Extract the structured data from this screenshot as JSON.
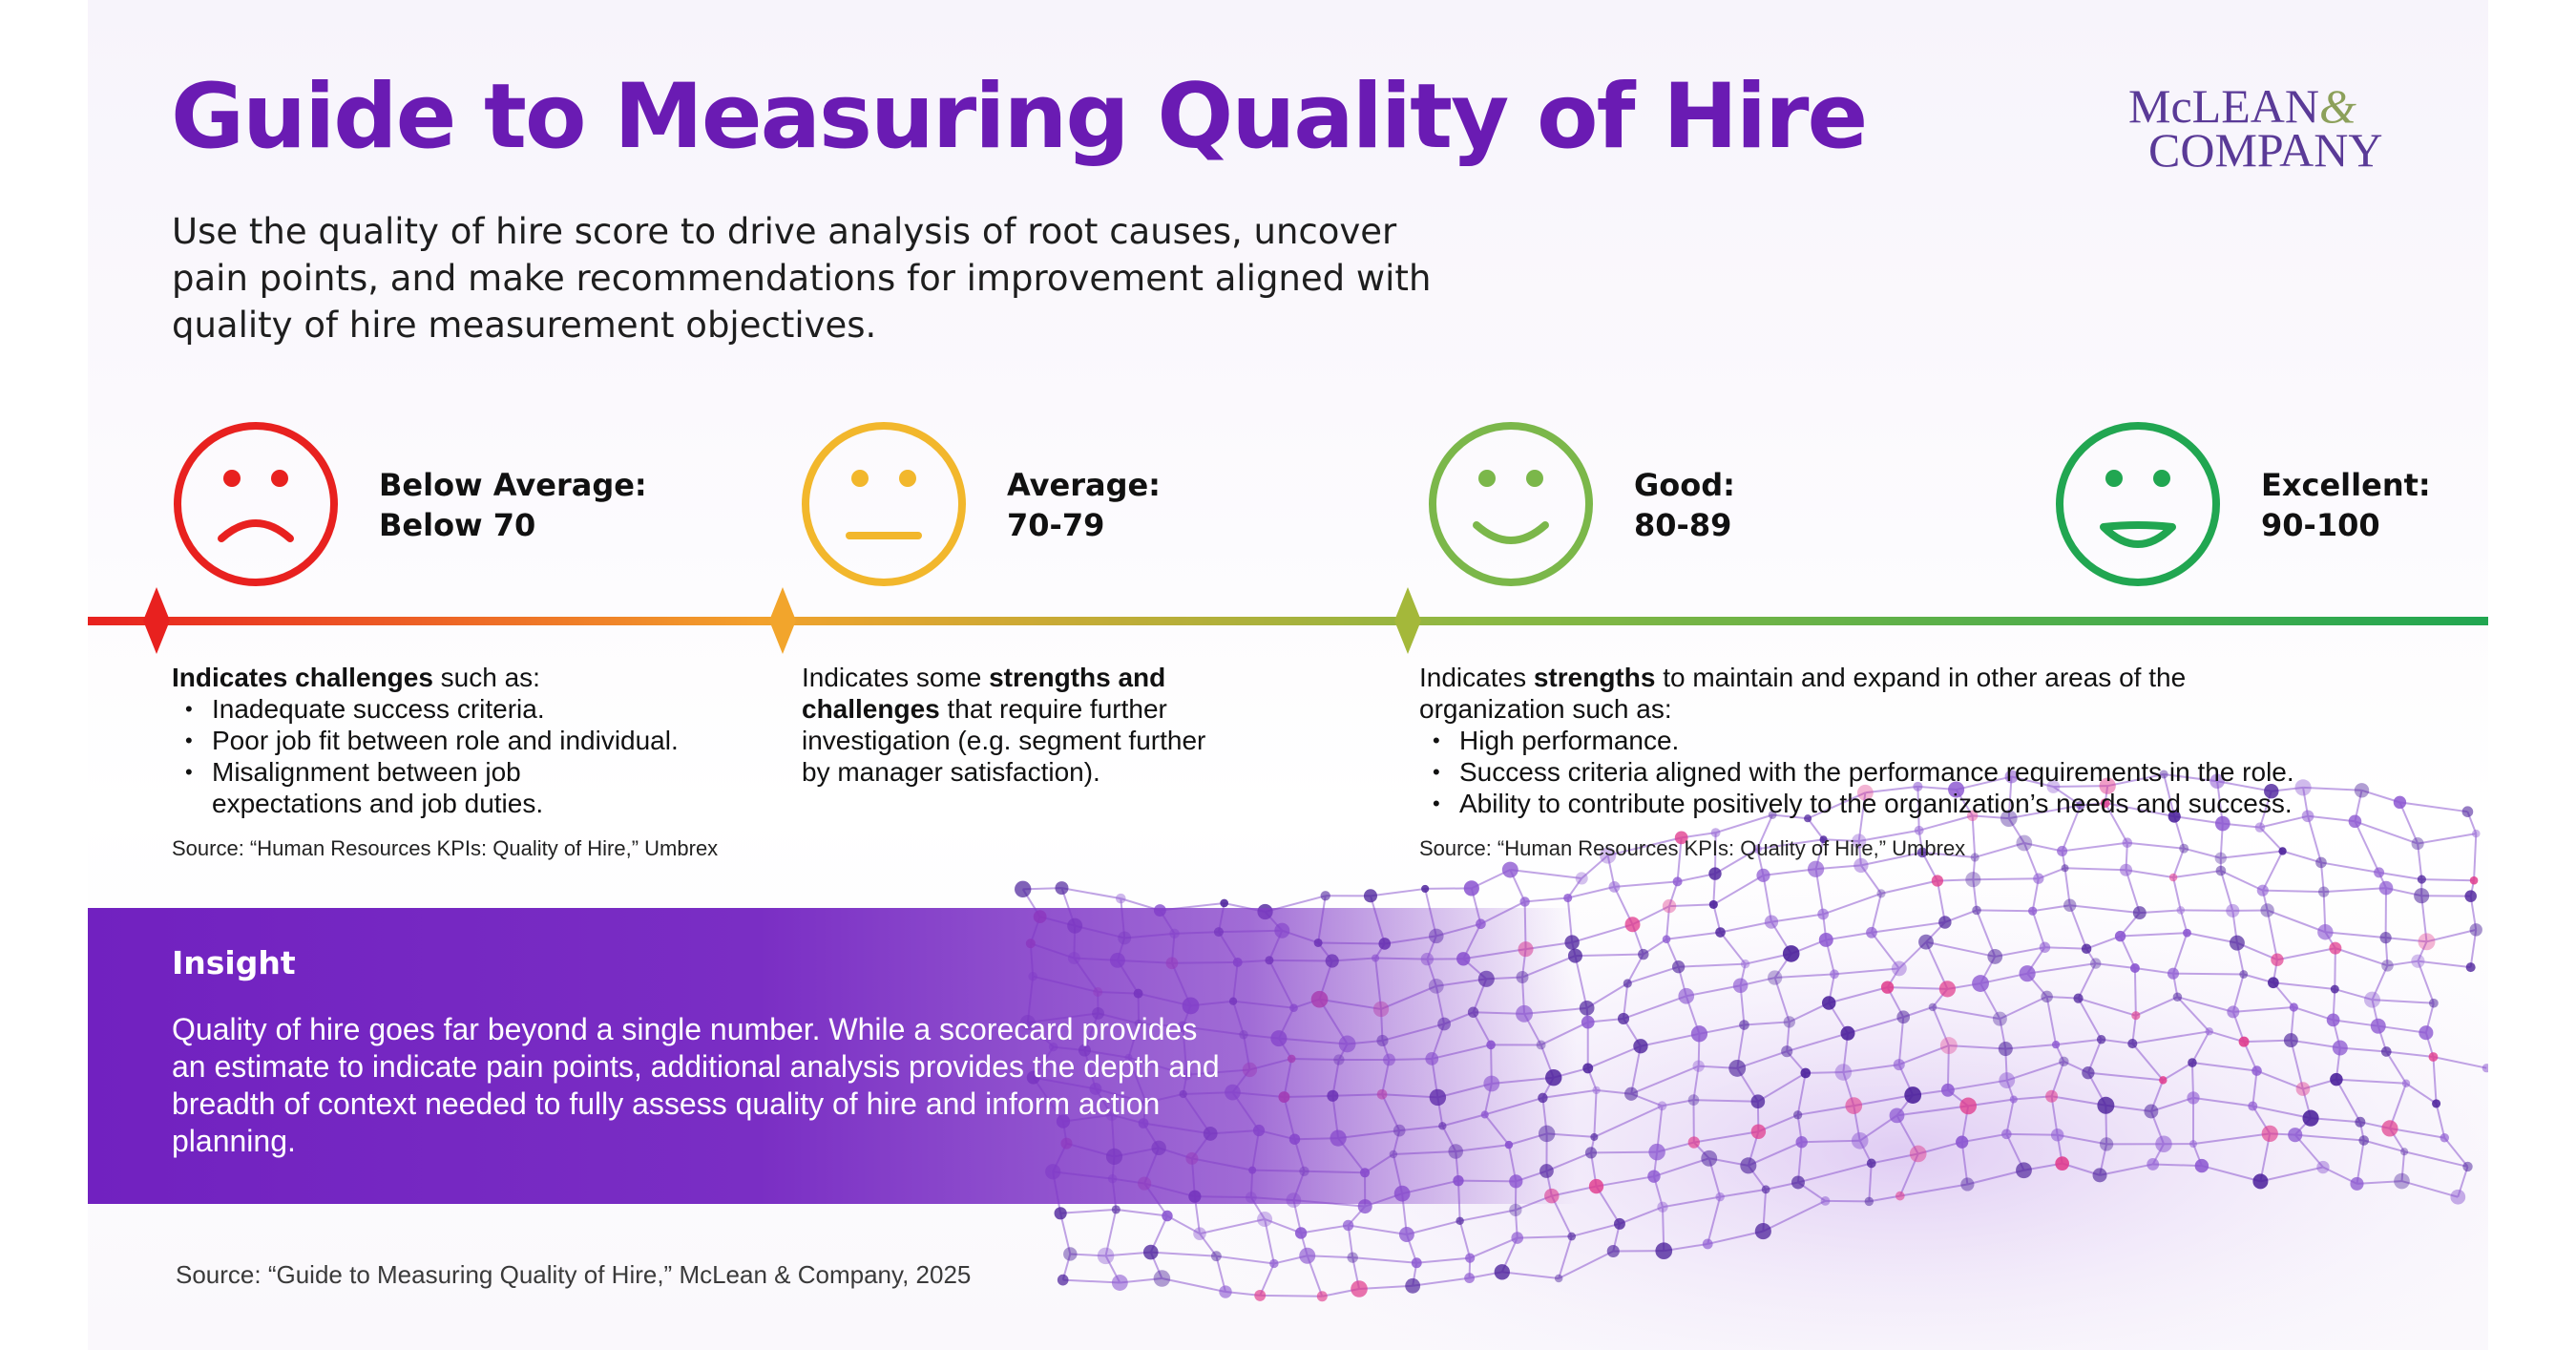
{
  "title": "Guide to Measuring Quality of Hire",
  "logo": {
    "line1": "McLEAN",
    "ampersand": "&",
    "line2": "COMPANY"
  },
  "subtitle": "Use the quality of hire score to drive analysis of root causes, uncover pain points, and make recommendations for improvement aligned with quality of hire measurement objectives.",
  "levels": [
    {
      "label_line1": "Below Average:",
      "label_line2": "Below 70",
      "face": "sad-face-icon",
      "color": "#e8211f"
    },
    {
      "label_line1": "Average:",
      "label_line2": "70-79",
      "face": "neutral-face-icon",
      "color": "#f2b72c"
    },
    {
      "label_line1": "Good:",
      "label_line2": "80-89",
      "face": "smile-face-icon",
      "color": "#7bb74a"
    },
    {
      "label_line1": "Excellent:",
      "label_line2": "90-100",
      "face": "grin-face-icon",
      "color": "#21a651"
    }
  ],
  "descriptions": {
    "below": {
      "intro_bold": "Indicates challenges",
      "intro_rest": " such as:",
      "bullets": [
        "Inadequate success criteria.",
        "Poor job fit between role and individual.",
        "Misalignment between job expectations and job duties."
      ]
    },
    "average": {
      "pre": "Indicates some ",
      "bold": "strengths and challenges",
      "post": " that require further investigation (e.g. segment further by manager satisfaction)."
    },
    "good": {
      "pre": "Indicates ",
      "bold": "strengths",
      "post": " to maintain and expand in other areas of the organization such as:",
      "bullets": [
        "High performance.",
        "Success criteria aligned with the performance requirements in the role.",
        "Ability to contribute positively to the organization’s needs and success."
      ]
    }
  },
  "source_small": "Source: “Human Resources KPIs: Quality of Hire,” Umbrex",
  "insight": {
    "title": "Insight",
    "text": "Quality of hire goes far beyond a single number. While a scorecard provides an estimate to indicate pain points, additional analysis provides the depth and breadth of context needed to fully assess quality of hire and inform action planning."
  },
  "footer_source": "Source: “Guide to Measuring Quality of Hire,” McLean & Company, 2025",
  "colors": {
    "title": "#6a1bb3",
    "insight_band": "#7121c0",
    "timeline_start": "#e8211f",
    "timeline_mid": "#f2a12c",
    "timeline_end": "#21a651"
  }
}
